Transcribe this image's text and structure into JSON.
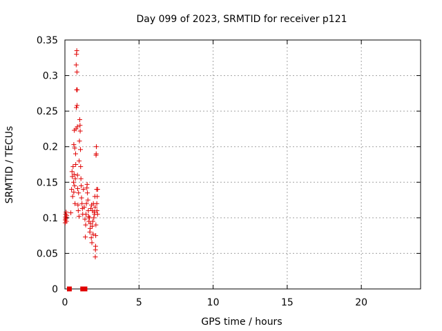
{
  "chart_data": {
    "type": "scatter",
    "title": "Day 099 of 2023, SRMTID for receiver p121",
    "xlabel": "GPS time / hours",
    "ylabel": "SRMTID / TECUs",
    "xlim": [
      0,
      24
    ],
    "ylim": [
      0,
      0.35
    ],
    "xticks": [
      0,
      5,
      10,
      15,
      20
    ],
    "yticks": [
      0,
      0.05,
      0.1,
      0.15,
      0.2,
      0.25,
      0.3,
      0.35
    ],
    "xtick_labels": [
      "0",
      "5",
      "10",
      "15",
      "20"
    ],
    "ytick_labels": [
      "0",
      "0.05",
      "0.1",
      "0.15",
      "0.2",
      "0.25",
      "0.3",
      "0.35"
    ],
    "grid": true,
    "marker_color": "#e00000",
    "series": [
      {
        "marker": "plus",
        "points": [
          [
            0.02,
            0.093
          ],
          [
            0.03,
            0.097
          ],
          [
            0.04,
            0.101
          ],
          [
            0.05,
            0.105
          ],
          [
            0.06,
            0.099
          ],
          [
            0.08,
            0.108
          ],
          [
            0.1,
            0.095
          ],
          [
            0.12,
            0.103
          ],
          [
            0.4,
            0.107
          ],
          [
            0.45,
            0.14
          ],
          [
            0.48,
            0.165
          ],
          [
            0.5,
            0.158
          ],
          [
            0.52,
            0.13
          ],
          [
            0.55,
            0.172
          ],
          [
            0.58,
            0.15
          ],
          [
            0.6,
            0.136
          ],
          [
            0.6,
            0.203
          ],
          [
            0.62,
            0.161
          ],
          [
            0.63,
            0.223
          ],
          [
            0.65,
            0.145
          ],
          [
            0.66,
            0.198
          ],
          [
            0.68,
            0.12
          ],
          [
            0.7,
            0.155
          ],
          [
            0.72,
            0.19
          ],
          [
            0.73,
            0.175
          ],
          [
            0.75,
            0.225
          ],
          [
            0.76,
            0.315
          ],
          [
            0.77,
            0.255
          ],
          [
            0.78,
            0.33
          ],
          [
            0.79,
            0.28
          ],
          [
            0.8,
            0.335
          ],
          [
            0.81,
            0.305
          ],
          [
            0.82,
            0.258
          ],
          [
            0.83,
            0.28
          ],
          [
            0.84,
            0.228
          ],
          [
            0.85,
            0.16
          ],
          [
            0.86,
            0.141
          ],
          [
            0.88,
            0.118
          ],
          [
            0.9,
            0.11
          ],
          [
            0.92,
            0.135
          ],
          [
            0.95,
            0.102
          ],
          [
            0.96,
            0.18
          ],
          [
            0.98,
            0.208
          ],
          [
            1.0,
            0.238
          ],
          [
            1.02,
            0.23
          ],
          [
            1.03,
            0.222
          ],
          [
            1.05,
            0.196
          ],
          [
            1.06,
            0.172
          ],
          [
            1.08,
            0.155
          ],
          [
            1.1,
            0.145
          ],
          [
            1.12,
            0.128
          ],
          [
            1.15,
            0.12
          ],
          [
            1.18,
            0.113
          ],
          [
            1.2,
            0.105
          ],
          [
            1.25,
            0.14
          ],
          [
            1.3,
            0.115
          ],
          [
            1.35,
            0.098
          ],
          [
            1.38,
            0.073
          ],
          [
            1.4,
            0.09
          ],
          [
            1.42,
            0.105
          ],
          [
            1.45,
            0.12
          ],
          [
            1.48,
            0.142
          ],
          [
            1.5,
            0.147
          ],
          [
            1.52,
            0.135
          ],
          [
            1.55,
            0.125
          ],
          [
            1.58,
            0.11
          ],
          [
            1.6,
            0.102
          ],
          [
            1.62,
            0.095
          ],
          [
            1.65,
            0.1
          ],
          [
            1.68,
            0.08
          ],
          [
            1.7,
            0.085
          ],
          [
            1.72,
            0.092
          ],
          [
            1.75,
            0.113
          ],
          [
            1.78,
            0.072
          ],
          [
            1.8,
            0.118
          ],
          [
            1.82,
            0.065
          ],
          [
            1.84,
            0.088
          ],
          [
            1.86,
            0.11
          ],
          [
            1.88,
            0.095
          ],
          [
            1.9,
            0.077
          ],
          [
            1.92,
            0.12
          ],
          [
            1.95,
            0.1
          ],
          [
            1.98,
            0.108
          ],
          [
            2.0,
            0.105
          ],
          [
            2.02,
            0.13
          ],
          [
            2.04,
            0.115
          ],
          [
            2.05,
            0.045
          ],
          [
            2.06,
            0.055
          ],
          [
            2.07,
            0.06
          ],
          [
            2.08,
            0.075
          ],
          [
            2.09,
            0.09
          ],
          [
            2.1,
            0.188
          ],
          [
            2.11,
            0.19
          ],
          [
            2.12,
            0.2
          ],
          [
            2.14,
            0.14
          ],
          [
            2.15,
            0.12
          ],
          [
            2.16,
            0.11
          ],
          [
            2.18,
            0.13
          ],
          [
            2.2,
            0.105
          ],
          [
            2.21,
            0.14
          ]
        ]
      },
      {
        "marker": "square",
        "points": [
          [
            0.3,
            0
          ],
          [
            1.2,
            0
          ],
          [
            1.35,
            0
          ]
        ]
      }
    ]
  }
}
